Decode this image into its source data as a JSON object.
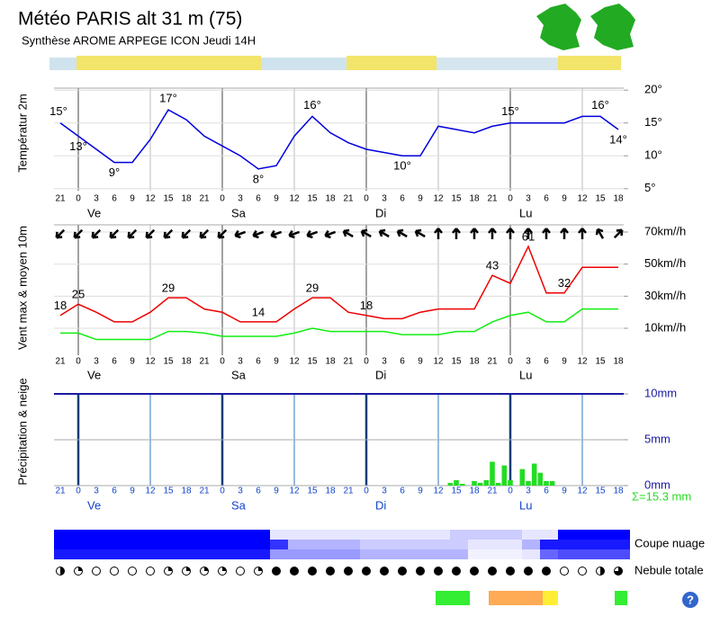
{
  "header": {
    "title": "Météo PARIS alt 31 m (75)",
    "subtitle": "Synthèse AROME ARPEGE ICON  Jeudi 14H"
  },
  "help": "?",
  "chart_data": [
    {
      "type": "line",
      "ylabel": "Températur 2m",
      "color": "#0000dd",
      "categories": [
        21,
        0,
        3,
        6,
        9,
        12,
        15,
        18,
        21,
        0,
        3,
        6,
        9,
        12,
        15,
        18,
        21,
        0,
        3,
        6,
        9,
        12,
        15,
        18,
        21,
        0,
        3,
        6,
        9,
        12,
        15,
        18
      ],
      "day_labels": [
        "Ve",
        "Sa",
        "Di",
        "Lu"
      ],
      "values": [
        15,
        13,
        11,
        9,
        9,
        12.5,
        17,
        15.5,
        13,
        11.5,
        10,
        8,
        8.5,
        13,
        16,
        13.5,
        12,
        11,
        10.5,
        10,
        10,
        14.5,
        14,
        13.5,
        14.5,
        15,
        15,
        15,
        15,
        16,
        16,
        14
      ],
      "value_labels": [
        "15°",
        "13°",
        null,
        "9°",
        null,
        null,
        "17°",
        null,
        null,
        null,
        null,
        "8°",
        null,
        null,
        "16°",
        null,
        null,
        null,
        null,
        "10°",
        null,
        null,
        null,
        null,
        null,
        "15°",
        null,
        null,
        null,
        null,
        "16°",
        "14°"
      ],
      "ylim": [
        4.7,
        20.3
      ],
      "yticks": [
        {
          "value": 20,
          "label": "20°"
        },
        {
          "value": 15,
          "label": "15°"
        },
        {
          "value": 10,
          "label": "10°"
        },
        {
          "value": 5,
          "label": "5°"
        }
      ],
      "grid": true
    },
    {
      "type": "line",
      "ylabel": "Vent max & moyen 10m",
      "series": [
        {
          "color": "#ee0000",
          "values": [
            18,
            25,
            20,
            14,
            14,
            20,
            29,
            29,
            22,
            20,
            14,
            14,
            14,
            22,
            29,
            29,
            20,
            18,
            16,
            16,
            20,
            22,
            22,
            22,
            43,
            38,
            61,
            32,
            32,
            48,
            48,
            48
          ],
          "value_labels": [
            "18",
            "25",
            null,
            null,
            null,
            null,
            "29",
            null,
            null,
            null,
            null,
            "14",
            null,
            null,
            "29",
            null,
            null,
            "18",
            null,
            null,
            null,
            null,
            null,
            null,
            "43",
            null,
            "61",
            null,
            "32",
            null,
            null,
            null
          ]
        },
        {
          "color": "#11ee11",
          "values": [
            7,
            7,
            3,
            3,
            3,
            3,
            8,
            8,
            7,
            5,
            5,
            5,
            5,
            7,
            10,
            8,
            8,
            8,
            8,
            6,
            6,
            6,
            8,
            8,
            14,
            18,
            20,
            14,
            14,
            22,
            22,
            22
          ]
        }
      ],
      "directions": [
        225,
        225,
        225,
        225,
        225,
        225,
        225,
        225,
        225,
        225,
        250,
        250,
        250,
        250,
        250,
        250,
        300,
        300,
        300,
        300,
        300,
        0,
        0,
        0,
        0,
        0,
        0,
        0,
        0,
        0,
        330,
        45
      ],
      "ylim": [
        -6.8,
        74.5
      ],
      "yticks": [
        {
          "value": 70,
          "label": "70km//h"
        },
        {
          "value": 50,
          "label": "50km//h"
        },
        {
          "value": 30,
          "label": "30km//h"
        },
        {
          "value": 10,
          "label": "10km//h"
        }
      ],
      "grid": true
    },
    {
      "type": "bar",
      "ylabel": "Précipitation & neige",
      "color": "#22dd22",
      "total": "Σ=15.3 mm",
      "x": [
        65,
        66,
        67,
        69,
        70,
        71,
        72,
        73,
        74,
        75,
        77,
        78,
        79,
        80,
        81,
        82
      ],
      "values": [
        0.3,
        0.6,
        0.2,
        0.5,
        0.3,
        0.6,
        2.6,
        0.3,
        2.2,
        0.6,
        1.8,
        0.5,
        2.4,
        1.4,
        0.5,
        0.5
      ],
      "ylim": [
        0,
        10
      ],
      "yticks": [
        {
          "value": 10,
          "label": "10mm"
        },
        {
          "value": 5,
          "label": "5mm"
        },
        {
          "value": 0,
          "label": "0mm"
        }
      ]
    },
    {
      "type": "heatmap",
      "title": "Coupe nuage",
      "rows": [
        [
          100,
          100,
          100,
          100,
          100,
          100,
          100,
          100,
          100,
          100,
          100,
          100,
          10,
          10,
          10,
          10,
          10,
          10,
          10,
          10,
          10,
          10,
          20,
          20,
          20,
          20,
          10,
          10,
          100,
          100,
          100,
          100
        ],
        [
          100,
          100,
          100,
          100,
          100,
          100,
          100,
          100,
          100,
          100,
          100,
          100,
          80,
          30,
          30,
          30,
          30,
          20,
          20,
          20,
          20,
          20,
          20,
          10,
          10,
          10,
          30,
          90,
          90,
          90,
          90,
          90
        ],
        [
          90,
          90,
          90,
          90,
          90,
          90,
          90,
          90,
          90,
          90,
          90,
          90,
          40,
          40,
          40,
          40,
          40,
          30,
          30,
          30,
          30,
          30,
          30,
          5,
          5,
          5,
          10,
          60,
          70,
          70,
          70,
          70
        ]
      ]
    },
    {
      "type": "cloud-cover",
      "title": "Nebule totale",
      "values": [
        0.5,
        0.25,
        0,
        0,
        0,
        0,
        0.25,
        0.25,
        0.25,
        0.25,
        0,
        0.25,
        1,
        1,
        1,
        1,
        1,
        1,
        1,
        1,
        1,
        1,
        1,
        1,
        1,
        1,
        1,
        1,
        0,
        0,
        0.5,
        0.75
      ]
    }
  ]
}
